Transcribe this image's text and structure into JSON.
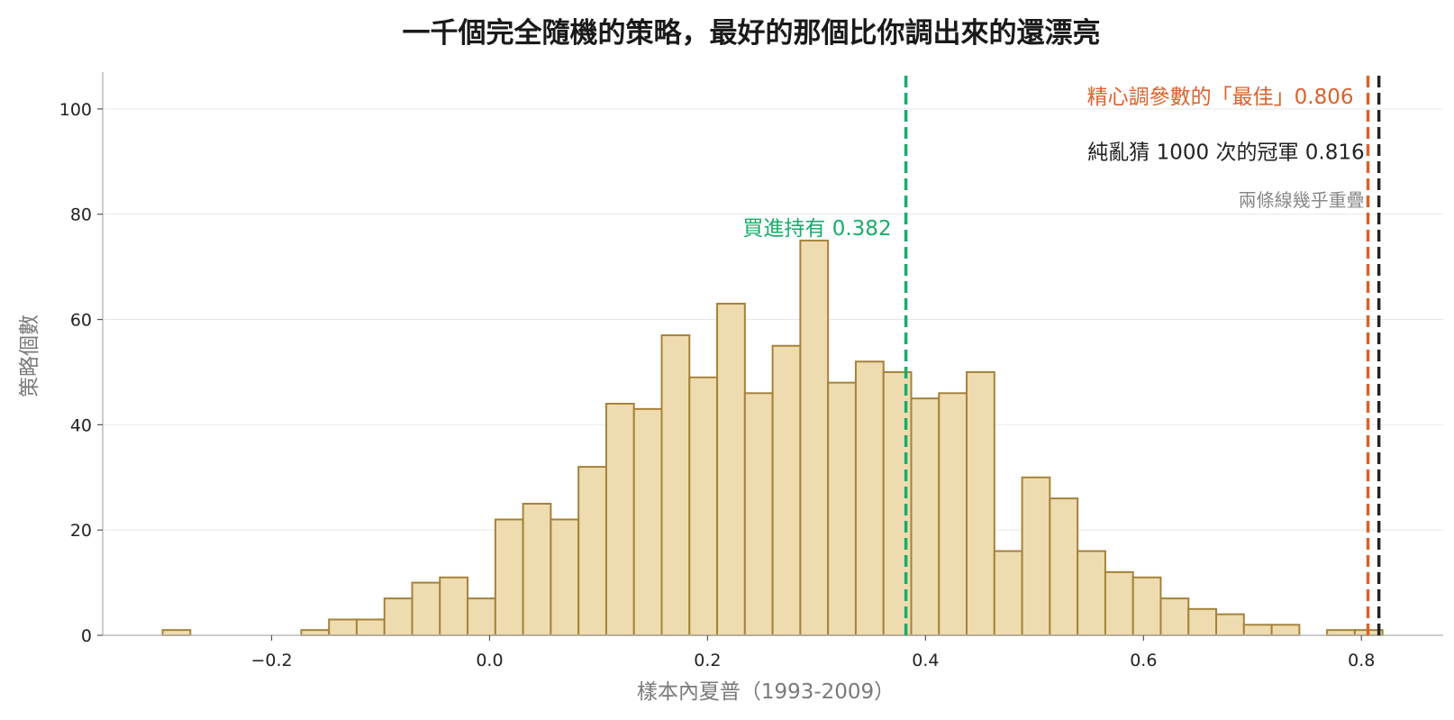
{
  "chart_data": {
    "type": "bar",
    "subtype": "histogram",
    "title": "一千個完全隨機的策略，最好的那個比你調出來的還漂亮",
    "xlabel": "樣本內夏普（1993-2009）",
    "ylabel": "策略個數",
    "xlim": [
      -0.355,
      0.875
    ],
    "ylim": [
      0,
      107
    ],
    "x_ticks": [
      -0.2,
      0.0,
      0.2,
      0.4,
      0.6,
      0.8
    ],
    "x_tick_labels": [
      "−0.2",
      "0.0",
      "0.2",
      "0.4",
      "0.6",
      "0.8"
    ],
    "y_ticks": [
      0,
      20,
      40,
      60,
      80,
      100
    ],
    "y_tick_labels": [
      "0",
      "20",
      "40",
      "60",
      "80",
      "100"
    ],
    "grid": "horizontal",
    "bin_start": -0.3,
    "bin_width": 0.02544,
    "counts": [
      1,
      0,
      0,
      0,
      0,
      1,
      3,
      3,
      7,
      10,
      11,
      7,
      22,
      25,
      22,
      32,
      44,
      43,
      57,
      49,
      63,
      46,
      55,
      75,
      48,
      52,
      50,
      45,
      46,
      50,
      16,
      30,
      26,
      16,
      12,
      11,
      7,
      5,
      4,
      2,
      2,
      0,
      1,
      1
    ],
    "bar_fill": "#eedcb0",
    "bar_edge": "#a5823a",
    "reference_lines": [
      {
        "x": 0.382,
        "color": "#1aab6a",
        "label": "買進持有 0.382"
      },
      {
        "x": 0.806,
        "color": "#d9622b",
        "label": "精心調參數的「最佳」0.806"
      },
      {
        "x": 0.816,
        "color": "#222222",
        "label": "純亂猜 1000 次的冠軍 0.816"
      }
    ],
    "note": {
      "text": "兩條線幾乎重疊",
      "color": "#888888"
    }
  }
}
